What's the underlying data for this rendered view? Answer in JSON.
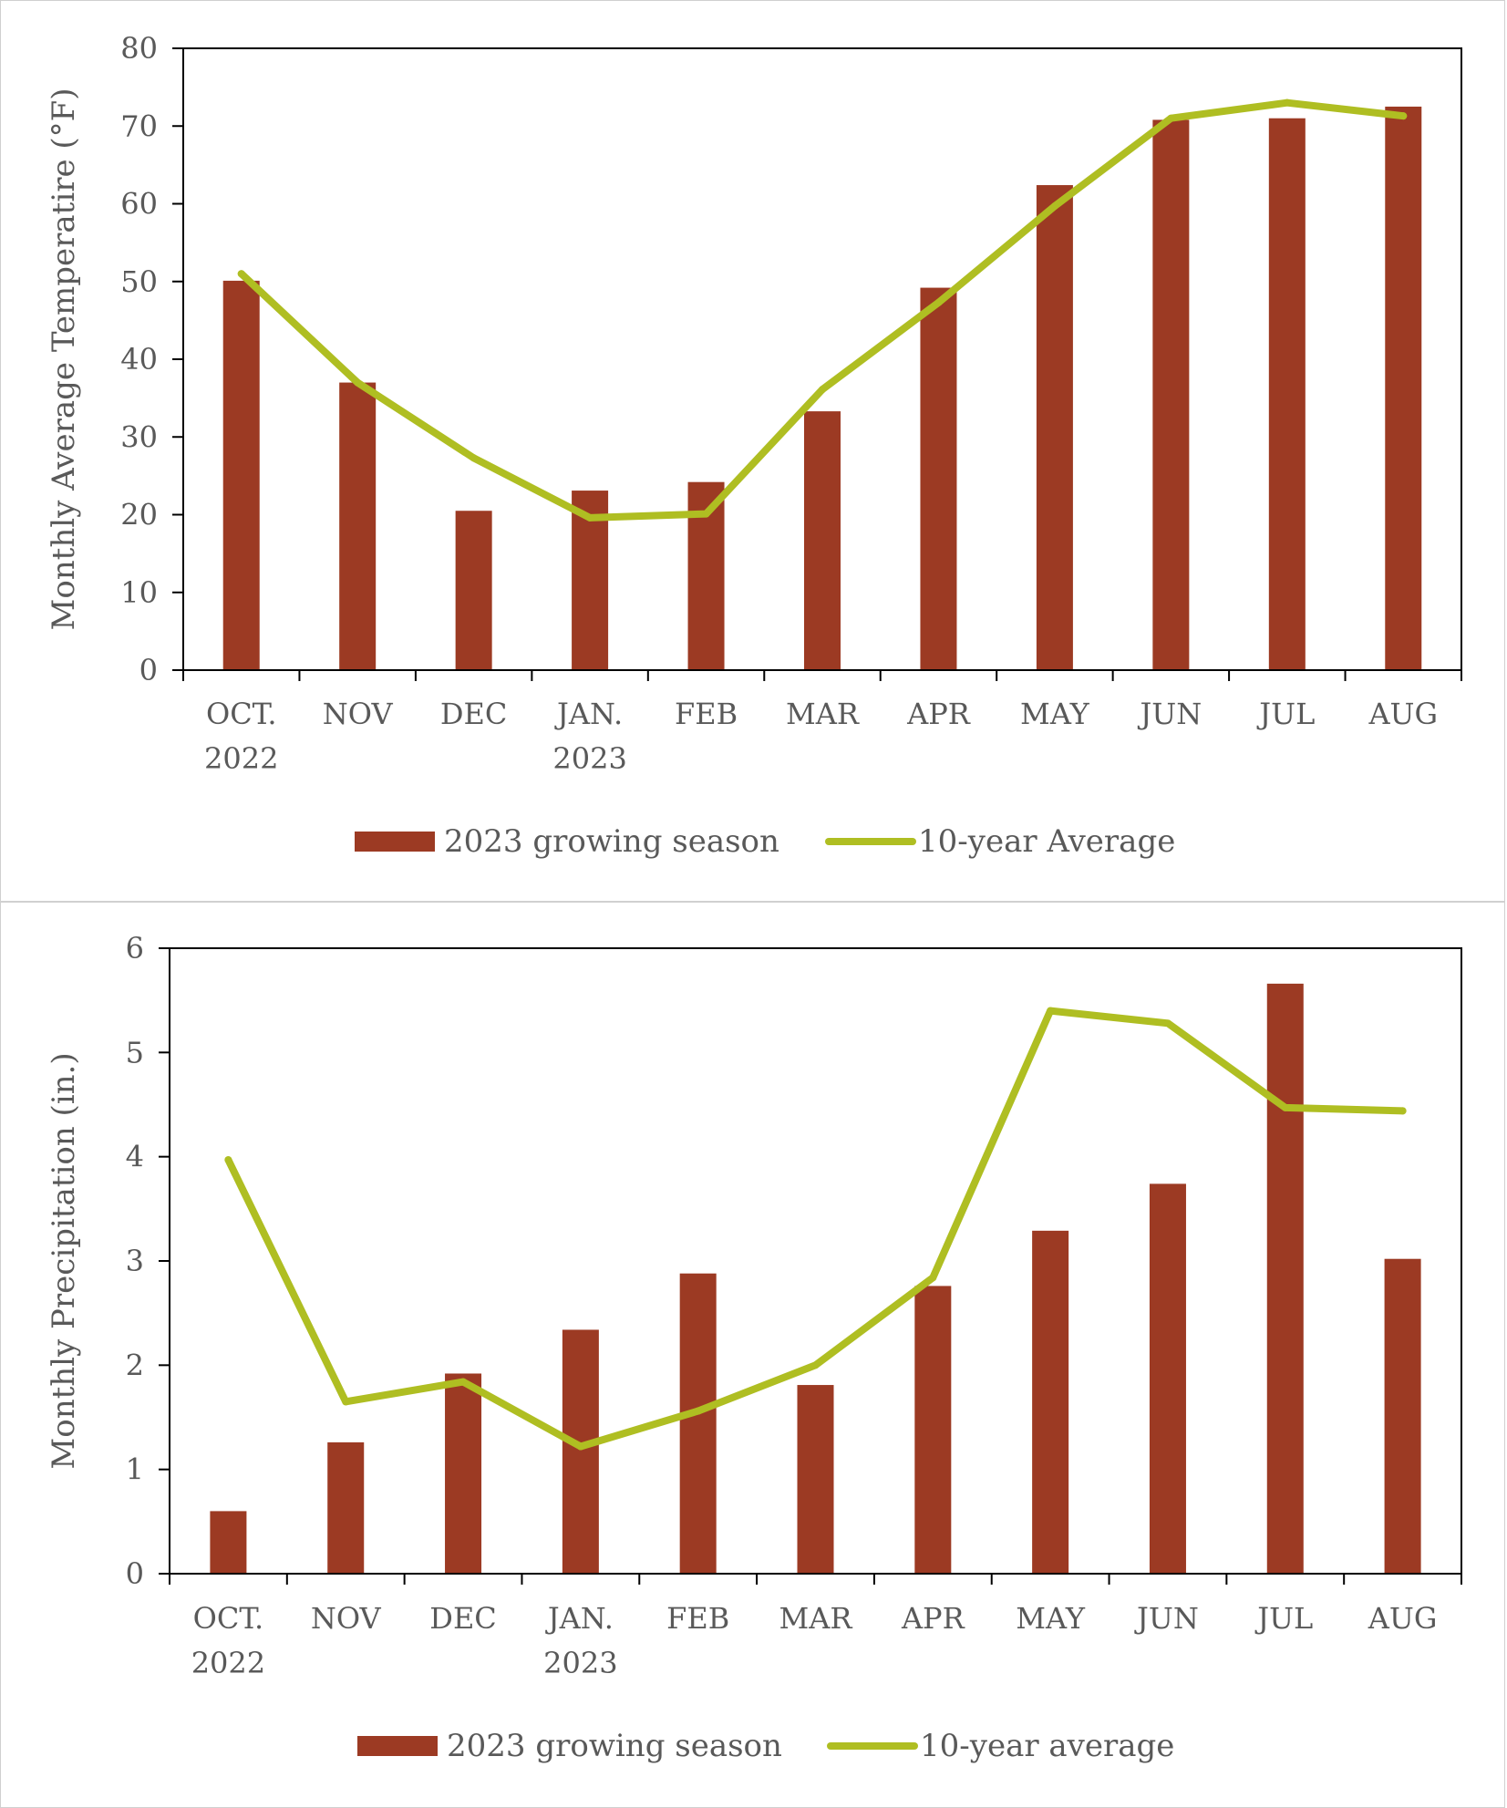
{
  "colors": {
    "bar": "#9C3A23",
    "line": "#AFBE22",
    "axis": "#000000",
    "text": "#595959"
  },
  "chart_data": [
    {
      "type": "bar",
      "title": "",
      "xlabel": "",
      "ylabel": "Monthly Average Temperatire (°F)",
      "ylim": [
        0,
        80
      ],
      "yticks": [
        0,
        10,
        20,
        30,
        40,
        50,
        60,
        70,
        80
      ],
      "grid": false,
      "legend_position": "bottom",
      "categories": [
        [
          "OCT.",
          "2022"
        ],
        [
          "NOV"
        ],
        [
          "DEC"
        ],
        [
          "JAN.",
          "2023"
        ],
        [
          "FEB"
        ],
        [
          "MAR"
        ],
        [
          "APR"
        ],
        [
          "MAY"
        ],
        [
          "JUN"
        ],
        [
          "JUL"
        ],
        [
          "AUG"
        ]
      ],
      "series": [
        {
          "name": "2023 growing season",
          "type": "bar",
          "values": [
            50.1,
            37.0,
            20.5,
            23.1,
            24.2,
            33.3,
            49.2,
            62.4,
            70.8,
            71.0,
            72.5
          ]
        },
        {
          "name": "10-year Average",
          "type": "line",
          "values": [
            51.0,
            37.0,
            27.3,
            19.6,
            20.1,
            36.1,
            47.3,
            59.7,
            71.0,
            73.0,
            71.3
          ]
        }
      ]
    },
    {
      "type": "bar",
      "title": "",
      "xlabel": "",
      "ylabel": "Monthly Precipitation (in.)",
      "ylim": [
        0,
        6
      ],
      "yticks": [
        0,
        1,
        2,
        3,
        4,
        5,
        6
      ],
      "grid": false,
      "legend_position": "bottom",
      "categories": [
        [
          "OCT.",
          "2022"
        ],
        [
          "NOV"
        ],
        [
          "DEC"
        ],
        [
          "JAN.",
          "2023"
        ],
        [
          "FEB"
        ],
        [
          "MAR"
        ],
        [
          "APR"
        ],
        [
          "MAY"
        ],
        [
          "JUN"
        ],
        [
          "JUL"
        ],
        [
          "AUG"
        ]
      ],
      "series": [
        {
          "name": "2023 growing season",
          "type": "bar",
          "values": [
            0.6,
            1.26,
            1.92,
            2.34,
            2.88,
            1.81,
            2.76,
            3.29,
            3.74,
            5.66,
            3.02
          ]
        },
        {
          "name": "10-year average",
          "type": "line",
          "values": [
            3.97,
            1.65,
            1.84,
            1.22,
            1.56,
            2.0,
            2.84,
            5.4,
            5.28,
            4.47,
            4.44
          ]
        }
      ]
    }
  ]
}
